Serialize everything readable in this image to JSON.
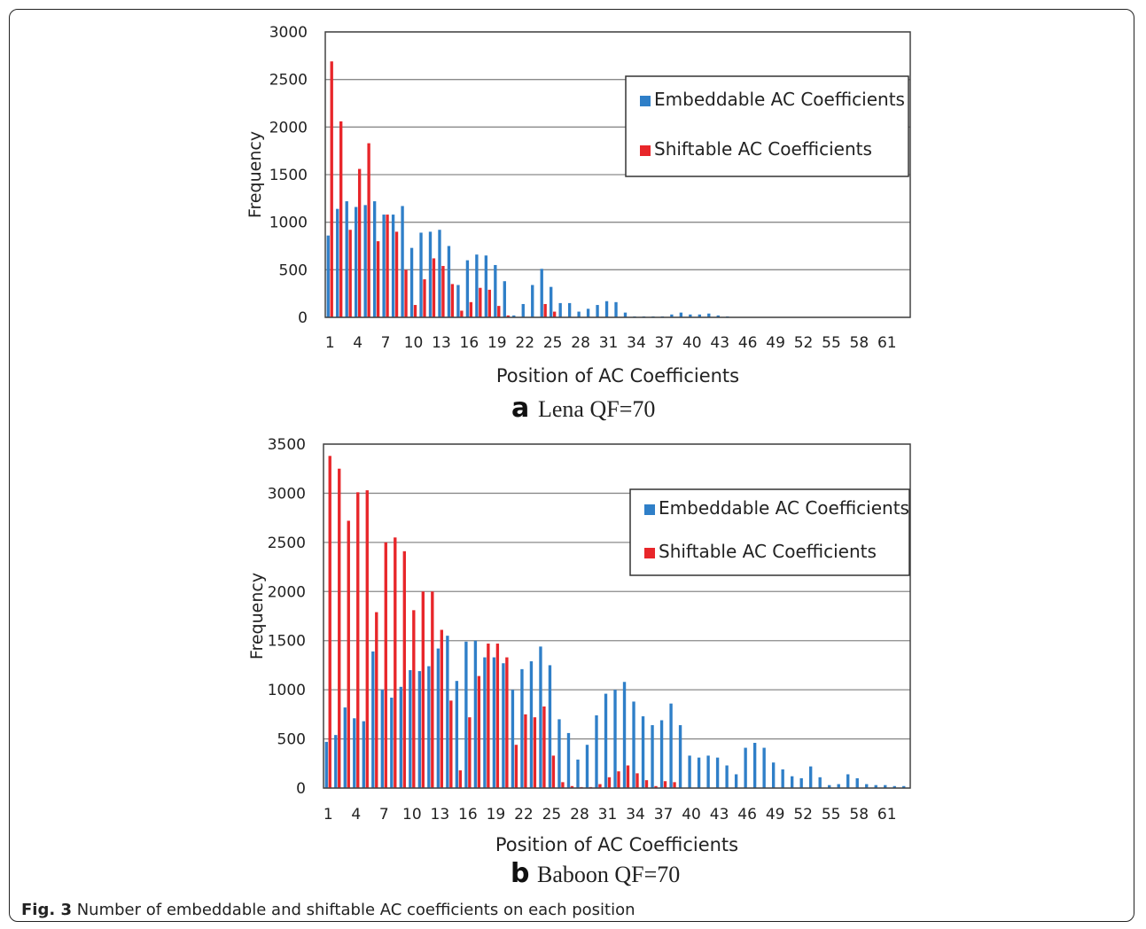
{
  "figure": {
    "caption_label": "Fig. 3",
    "caption_text": "Number of embeddable and shiftable AC coefficients on each position"
  },
  "colors": {
    "embeddable": "#2f7fc8",
    "shiftable": "#e8262a"
  },
  "chart_data": [
    {
      "type": "bar",
      "panel_letter": "a",
      "subtitle": "Lena QF=70",
      "xlabel": "Position of AC Coefficients",
      "ylabel": "Frequency",
      "ylim": [
        0,
        3000
      ],
      "yticks": [
        0,
        500,
        1000,
        1500,
        2000,
        2500,
        3000
      ],
      "x": [
        1,
        2,
        3,
        4,
        5,
        6,
        7,
        8,
        9,
        10,
        11,
        12,
        13,
        14,
        15,
        16,
        17,
        18,
        19,
        20,
        21,
        22,
        23,
        24,
        25,
        26,
        27,
        28,
        29,
        30,
        31,
        32,
        33,
        34,
        35,
        36,
        37,
        38,
        39,
        40,
        41,
        42,
        43,
        44,
        45,
        46,
        47,
        48,
        49,
        50,
        51,
        52,
        53,
        54,
        55,
        56,
        57,
        58,
        59,
        60,
        61,
        62,
        63
      ],
      "xtick_labels": [
        "1",
        "4",
        "7",
        "10",
        "13",
        "16",
        "19",
        "22",
        "25",
        "28",
        "31",
        "34",
        "37",
        "40",
        "43",
        "46",
        "49",
        "52",
        "55",
        "58",
        "61"
      ],
      "grid": true,
      "legend_position": "top-right",
      "series": [
        {
          "name": "Embeddable AC Coefficients",
          "values": [
            860,
            1140,
            1220,
            1160,
            1180,
            1220,
            1080,
            1080,
            1170,
            730,
            890,
            900,
            920,
            750,
            340,
            600,
            660,
            650,
            550,
            380,
            20,
            140,
            340,
            510,
            320,
            150,
            150,
            60,
            90,
            130,
            170,
            160,
            50,
            10,
            10,
            10,
            10,
            30,
            50,
            30,
            30,
            40,
            20,
            10,
            0,
            0,
            0,
            0,
            0,
            0,
            0,
            0,
            0,
            0,
            0,
            0,
            0,
            0,
            0,
            0,
            0,
            0,
            0
          ]
        },
        {
          "name": "Shiftable AC Coefficients",
          "values": [
            2690,
            2060,
            920,
            1560,
            1830,
            800,
            1080,
            900,
            500,
            130,
            400,
            620,
            540,
            350,
            70,
            160,
            310,
            290,
            120,
            20,
            0,
            0,
            0,
            140,
            60,
            0,
            0,
            0,
            0,
            0,
            0,
            0,
            0,
            0,
            0,
            0,
            0,
            0,
            0,
            0,
            0,
            0,
            0,
            0,
            0,
            0,
            0,
            0,
            0,
            0,
            0,
            0,
            0,
            0,
            0,
            0,
            0,
            0,
            0,
            0,
            0,
            0,
            0
          ]
        }
      ]
    },
    {
      "type": "bar",
      "panel_letter": "b",
      "subtitle": "Baboon QF=70",
      "xlabel": "Position of AC Coefficients",
      "ylabel": "Frequency",
      "ylim": [
        0,
        3500
      ],
      "yticks": [
        0,
        500,
        1000,
        1500,
        2000,
        2500,
        3000,
        3500
      ],
      "x": [
        1,
        2,
        3,
        4,
        5,
        6,
        7,
        8,
        9,
        10,
        11,
        12,
        13,
        14,
        15,
        16,
        17,
        18,
        19,
        20,
        21,
        22,
        23,
        24,
        25,
        26,
        27,
        28,
        29,
        30,
        31,
        32,
        33,
        34,
        35,
        36,
        37,
        38,
        39,
        40,
        41,
        42,
        43,
        44,
        45,
        46,
        47,
        48,
        49,
        50,
        51,
        52,
        53,
        54,
        55,
        56,
        57,
        58,
        59,
        60,
        61,
        62,
        63
      ],
      "xtick_labels": [
        "1",
        "4",
        "7",
        "10",
        "13",
        "16",
        "19",
        "22",
        "25",
        "28",
        "31",
        "34",
        "37",
        "40",
        "43",
        "46",
        "49",
        "52",
        "55",
        "58",
        "61"
      ],
      "grid": true,
      "legend_position": "top-right",
      "series": [
        {
          "name": "Embeddable AC Coefficients",
          "values": [
            470,
            540,
            820,
            710,
            680,
            1390,
            1000,
            920,
            1030,
            1200,
            1190,
            1240,
            1420,
            1550,
            1090,
            1490,
            1500,
            1330,
            1330,
            1270,
            1000,
            1210,
            1290,
            1440,
            1250,
            700,
            560,
            290,
            440,
            740,
            960,
            1000,
            1080,
            880,
            730,
            640,
            690,
            860,
            640,
            330,
            310,
            330,
            310,
            230,
            140,
            410,
            460,
            410,
            260,
            190,
            120,
            100,
            220,
            110,
            30,
            40,
            140,
            100,
            40,
            30,
            30,
            20,
            20
          ]
        },
        {
          "name": "Shiftable AC Coefficients",
          "values": [
            3380,
            3250,
            2720,
            3010,
            3030,
            1790,
            2500,
            2550,
            2410,
            1810,
            2000,
            2000,
            1610,
            890,
            180,
            720,
            1140,
            1470,
            1470,
            1330,
            440,
            750,
            720,
            830,
            330,
            60,
            20,
            10,
            10,
            40,
            110,
            170,
            230,
            150,
            80,
            20,
            70,
            60,
            0,
            0,
            0,
            0,
            0,
            0,
            0,
            0,
            0,
            0,
            0,
            0,
            0,
            0,
            0,
            0,
            0,
            0,
            0,
            0,
            0,
            0,
            0,
            0,
            0
          ]
        }
      ]
    }
  ]
}
